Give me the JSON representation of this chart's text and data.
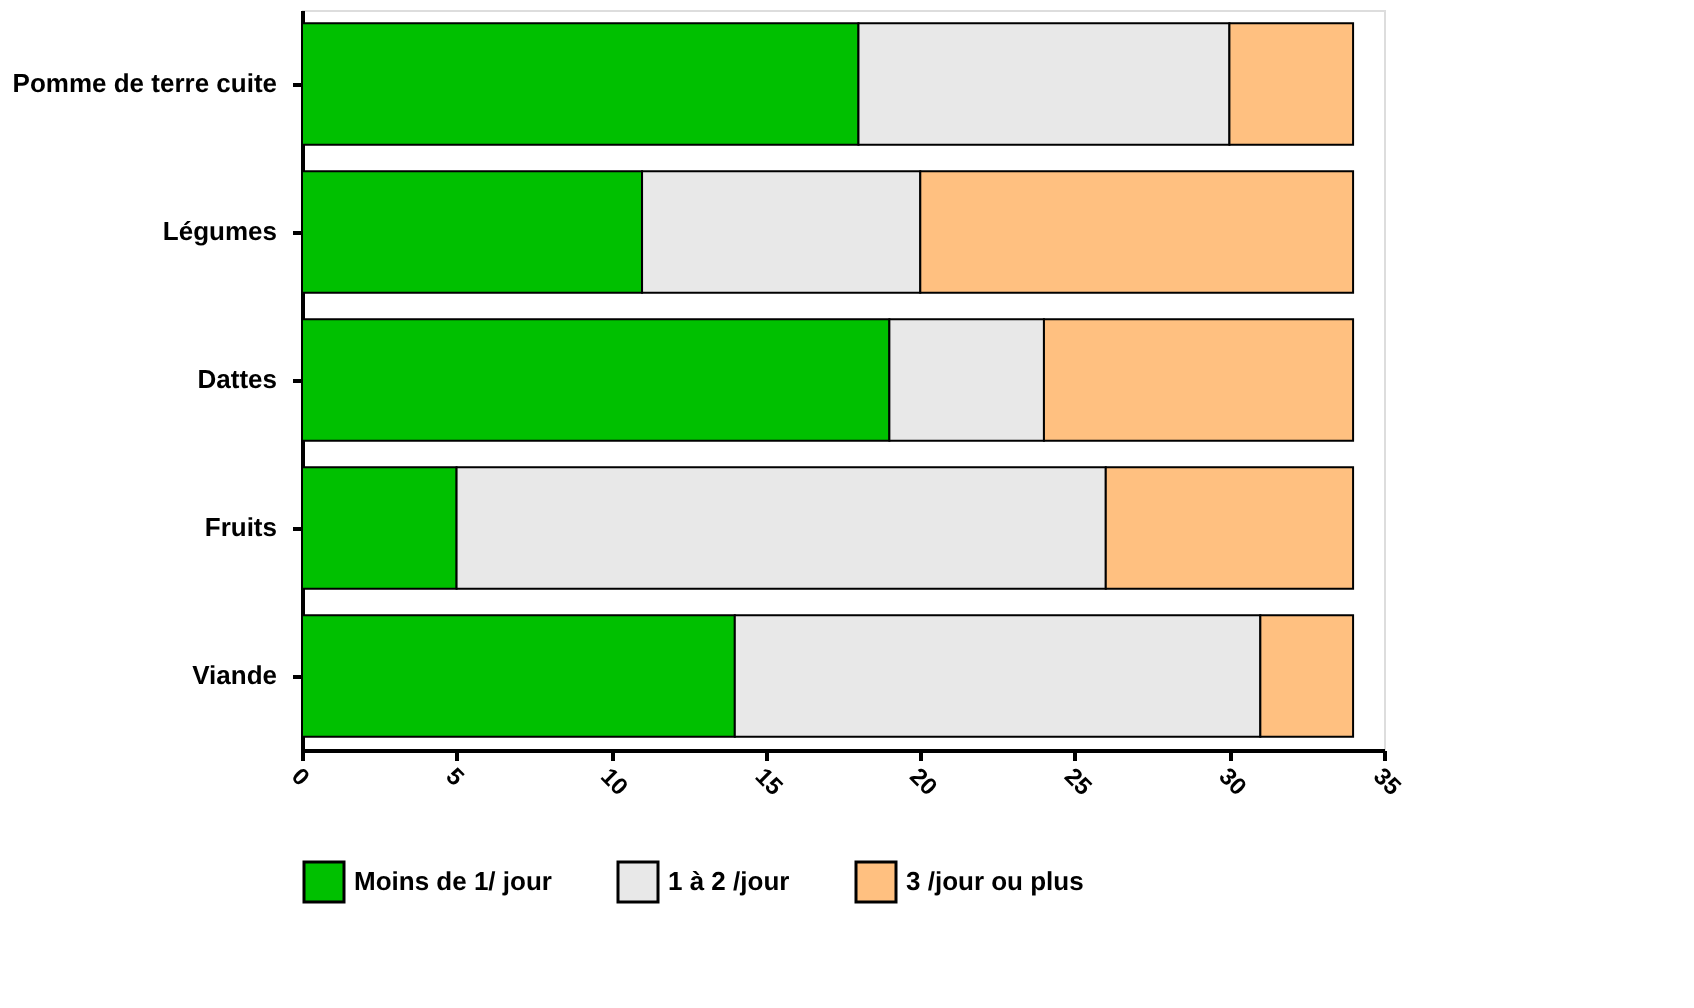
{
  "chart_data": {
    "type": "bar",
    "orientation": "horizontal",
    "stacked": true,
    "categories": [
      "Pomme de terre cuite",
      "Légumes",
      "Dattes",
      "Fruits",
      "Viande"
    ],
    "series": [
      {
        "name": "Moins de 1/ jour",
        "color": "#00c000",
        "values": [
          18,
          11,
          19,
          5,
          14
        ]
      },
      {
        "name": "1 à 2 /jour",
        "color": "#e8e8e8",
        "values": [
          12,
          9,
          5,
          21,
          17
        ]
      },
      {
        "name": "3 /jour ou plus",
        "color": "#ffc080",
        "values": [
          4,
          14,
          10,
          8,
          3
        ]
      }
    ],
    "xlim": [
      0,
      35
    ],
    "xticks": [
      0,
      5,
      10,
      15,
      20,
      25,
      30,
      35
    ],
    "grid": false,
    "legend": "bottom"
  }
}
